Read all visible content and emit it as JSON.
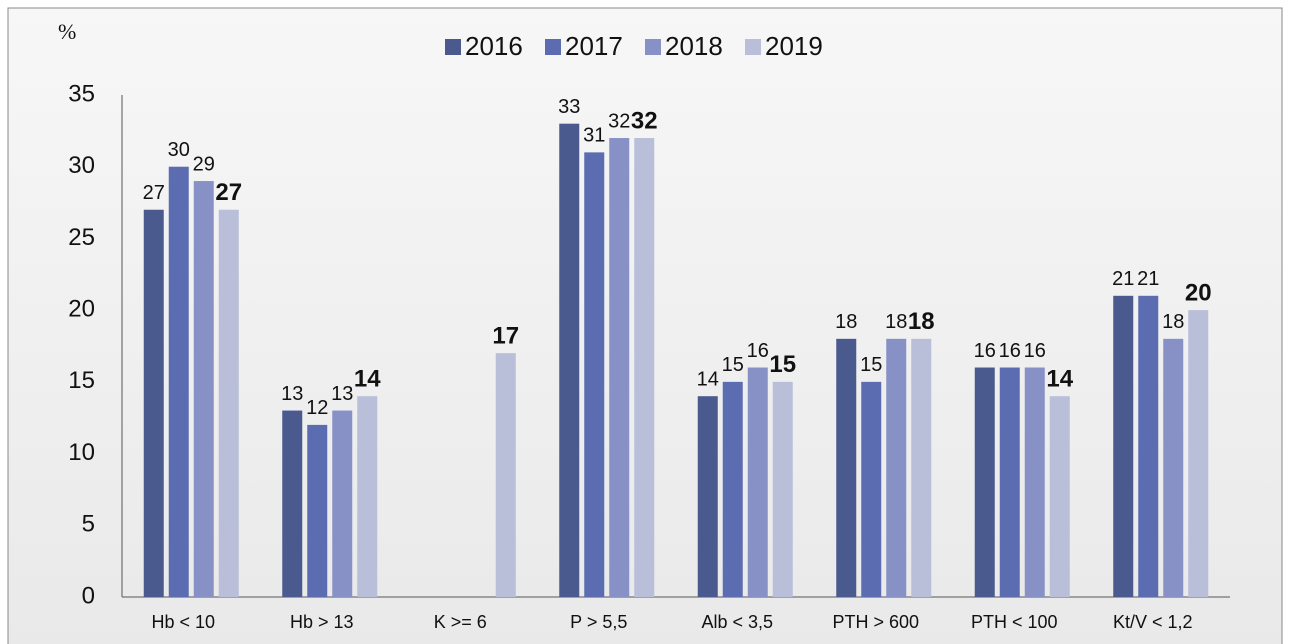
{
  "chart_data": {
    "type": "bar",
    "y_unit_label": "%",
    "categories": [
      "Hb < 10",
      "Hb > 13",
      "K >= 6",
      "P > 5,5",
      "Alb < 3,5",
      "PTH > 600",
      "PTH < 100",
      "Kt/V < 1,2"
    ],
    "series": [
      {
        "name": "2016",
        "color": "#4b5a8e",
        "values": [
          27,
          13,
          null,
          33,
          14,
          18,
          16,
          21
        ]
      },
      {
        "name": "2017",
        "color": "#5b6db0",
        "values": [
          30,
          12,
          null,
          31,
          15,
          15,
          16,
          21
        ]
      },
      {
        "name": "2018",
        "color": "#8791c6",
        "values": [
          29,
          13,
          null,
          32,
          16,
          18,
          16,
          18
        ]
      },
      {
        "name": "2019",
        "color": "#b9bed9",
        "values": [
          27,
          14,
          17,
          32,
          15,
          18,
          14,
          20
        ],
        "bold_labels": true
      }
    ],
    "ylim": [
      0,
      35
    ],
    "yticks": [
      0,
      5,
      10,
      15,
      20,
      25,
      30,
      35
    ],
    "grid": false,
    "legend": "top"
  }
}
